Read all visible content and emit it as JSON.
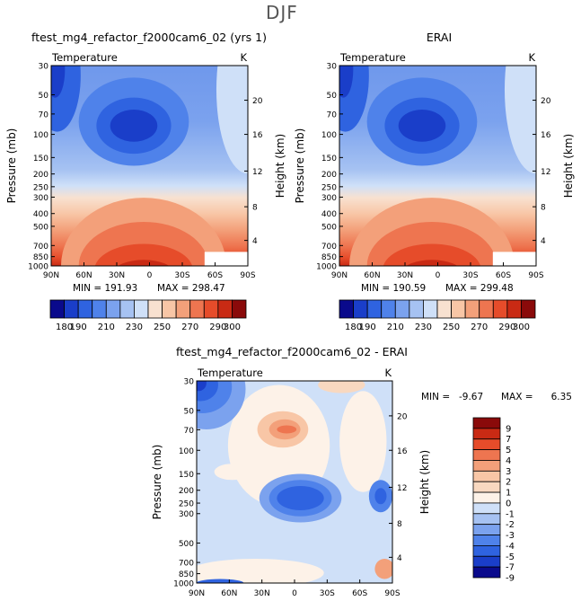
{
  "season": "DJF",
  "colors": {
    "abs_scale": [
      "#0a0a8c",
      "#1a3ec9",
      "#2f63e0",
      "#4f82ea",
      "#7ba2ee",
      "#a6c2f2",
      "#cfe0f8",
      "#f8e1d0",
      "#f8c6a6",
      "#f3a07a",
      "#ee7550",
      "#e64c2a",
      "#c92a14",
      "#8a0a0a"
    ],
    "diff_scale": [
      "#0a0a8c",
      "#1a3ec9",
      "#2f63e0",
      "#4f82ea",
      "#7ba2ee",
      "#a6c2f2",
      "#cfe0f8",
      "#fdf2e8",
      "#f8d8c0",
      "#f8c6a6",
      "#f3a07a",
      "#ee7550",
      "#e64c2a",
      "#c92a14",
      "#8a0a0a"
    ]
  },
  "chart_data": [
    {
      "type": "heatmap",
      "title": "ftest_mg4_refactor_f2000cam6_02 (yrs 1)",
      "left_label": "Temperature",
      "right_label": "K",
      "ylabel": "Pressure (mb)",
      "ylabel_right": "Height (km)",
      "x_ticks": [
        "90N",
        "60N",
        "30N",
        "0",
        "30S",
        "60S",
        "90S"
      ],
      "y_ticks": [
        "30",
        "50",
        "70",
        "100",
        "150",
        "200",
        "250",
        "300",
        "400",
        "500",
        "700",
        "850",
        "1000"
      ],
      "y_ticks_right": [
        "20",
        "16",
        "12",
        "8",
        "4"
      ],
      "min_label": "MIN = 191.93",
      "max_label": "MAX = 298.47",
      "colorbar_labels": [
        "180",
        "190",
        "210",
        "230",
        "250",
        "270",
        "290",
        "300"
      ],
      "variant": "model"
    },
    {
      "type": "heatmap",
      "title": "ERAI",
      "left_label": "Temperature",
      "right_label": "K",
      "ylabel": "Pressure (mb)",
      "ylabel_right": "Height (km)",
      "x_ticks": [
        "90N",
        "60N",
        "30N",
        "0",
        "30S",
        "60S",
        "90S"
      ],
      "y_ticks": [
        "30",
        "50",
        "70",
        "100",
        "150",
        "200",
        "250",
        "300",
        "400",
        "500",
        "700",
        "850",
        "1000"
      ],
      "y_ticks_right": [
        "20",
        "16",
        "12",
        "8",
        "4"
      ],
      "min_label": "MIN = 190.59",
      "max_label": "MAX = 299.48",
      "colorbar_labels": [
        "180",
        "190",
        "210",
        "230",
        "250",
        "270",
        "290",
        "300"
      ],
      "variant": "obs"
    },
    {
      "type": "heatmap",
      "title": "ftest_mg4_refactor_f2000cam6_02 - ERAI",
      "left_label": "Temperature",
      "right_label": "K",
      "ylabel": "Pressure (mb)",
      "ylabel_right": "Height (km)",
      "x_ticks": [
        "90N",
        "60N",
        "30N",
        "0",
        "30S",
        "60S",
        "90S"
      ],
      "y_ticks": [
        "30",
        "50",
        "70",
        "100",
        "150",
        "200",
        "250",
        "300",
        "500",
        "700",
        "850",
        "1000"
      ],
      "y_ticks_right": [
        "20",
        "16",
        "12",
        "8",
        "4"
      ],
      "min_label": "MIN =",
      "min_value": "-9.67",
      "max_label": "MAX =",
      "max_value": "6.35",
      "colorbar_labels": [
        "9",
        "7",
        "5",
        "4",
        "3",
        "2",
        "1",
        "0",
        "-1",
        "-2",
        "-3",
        "-4",
        "-5",
        "-7",
        "-9"
      ],
      "variant": "diff"
    }
  ]
}
